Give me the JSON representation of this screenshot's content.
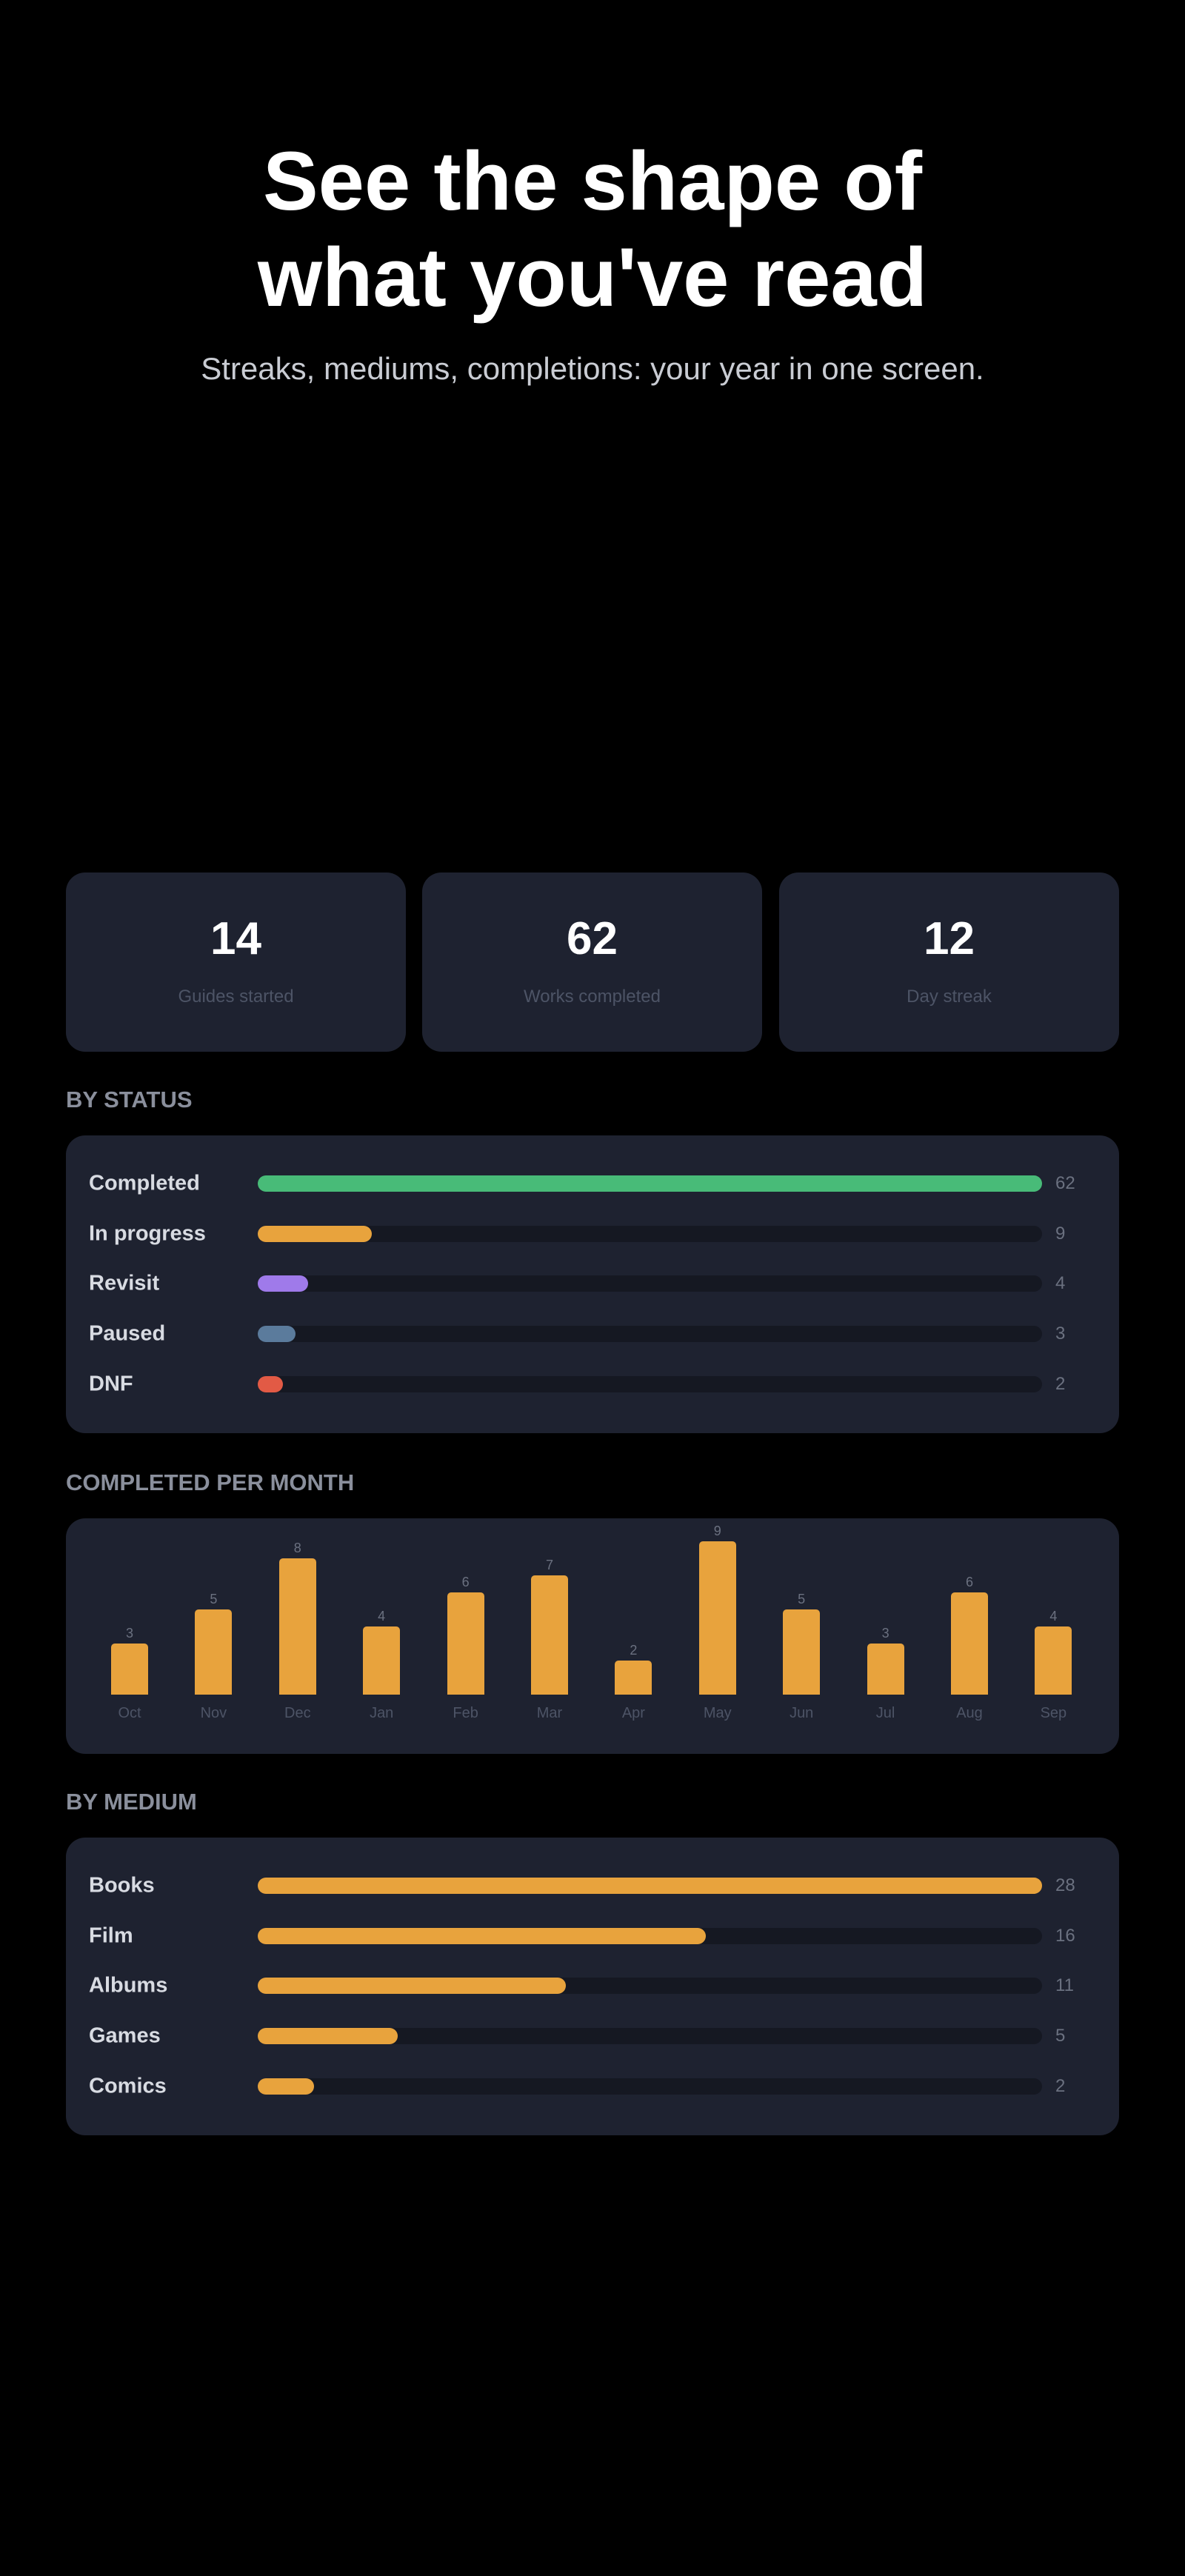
{
  "header": {
    "title": "See the shape of what you've read",
    "subtitle": "Streaks, mediums, completions: your year in one screen."
  },
  "stats": [
    {
      "value": 14,
      "label": "Guides started"
    },
    {
      "value": 62,
      "label": "Works completed"
    },
    {
      "value": 12,
      "label": "Day streak"
    }
  ],
  "by_status": {
    "type": "hbar",
    "title": "BY STATUS",
    "categories": [
      "Completed",
      "In progress",
      "Revisit",
      "Paused",
      "DNF"
    ],
    "values": [
      62,
      9,
      4,
      3,
      2
    ],
    "colors": [
      "#48bb78",
      "#e8a33d",
      "#9f7aea",
      "#5b7b9c",
      "#e25a45"
    ]
  },
  "per_month": {
    "type": "bar",
    "title": "COMPLETED PER MONTH",
    "categories": [
      "Oct",
      "Nov",
      "Dec",
      "Jan",
      "Feb",
      "Mar",
      "Apr",
      "May",
      "Jun",
      "Jul",
      "Aug",
      "Sep"
    ],
    "values": [
      3,
      5,
      8,
      4,
      6,
      7,
      2,
      9,
      5,
      3,
      6,
      4
    ],
    "color": "#e8a33d"
  },
  "by_medium": {
    "type": "hbar",
    "title": "BY MEDIUM",
    "categories": [
      "Books",
      "Film",
      "Albums",
      "Games",
      "Comics"
    ],
    "values": [
      28,
      16,
      11,
      5,
      2
    ],
    "colors": [
      "#e8a33d",
      "#e8a33d",
      "#e8a33d",
      "#e8a33d",
      "#e8a33d"
    ]
  }
}
